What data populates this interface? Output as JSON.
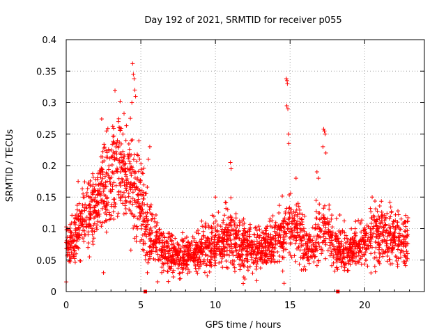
{
  "chart_data": {
    "type": "scatter",
    "title": "Day 192 of 2021, SRMTID for receiver p055",
    "xlabel": "GPS time / hours",
    "ylabel": "SRMTID / TECUs",
    "xlim": [
      0,
      24
    ],
    "ylim": [
      0,
      0.4
    ],
    "xticks": [
      0,
      5,
      10,
      15,
      20
    ],
    "xtick_labels": [
      "0",
      "5",
      "10",
      "15",
      "20"
    ],
    "yticks": [
      0,
      0.05,
      0.1,
      0.15,
      0.2,
      0.25,
      0.3,
      0.35,
      0.4
    ],
    "ytick_labels": [
      "0",
      "0.05",
      "0.1",
      "0.15",
      "0.2",
      "0.25",
      "0.3",
      "0.35",
      "0.4"
    ],
    "grid": true,
    "marker": "plus",
    "color": "#ff0000",
    "profile": [
      [
        0.0,
        0.07,
        0.018
      ],
      [
        0.5,
        0.08,
        0.02
      ],
      [
        1.0,
        0.11,
        0.025
      ],
      [
        1.5,
        0.12,
        0.025
      ],
      [
        2.0,
        0.13,
        0.03
      ],
      [
        2.5,
        0.17,
        0.035
      ],
      [
        3.0,
        0.18,
        0.04
      ],
      [
        3.5,
        0.2,
        0.04
      ],
      [
        4.0,
        0.18,
        0.035
      ],
      [
        4.5,
        0.16,
        0.04
      ],
      [
        5.0,
        0.14,
        0.04
      ],
      [
        5.5,
        0.09,
        0.025
      ],
      [
        6.0,
        0.08,
        0.02
      ],
      [
        7.0,
        0.06,
        0.015
      ],
      [
        8.0,
        0.055,
        0.015
      ],
      [
        9.0,
        0.065,
        0.015
      ],
      [
        10.0,
        0.075,
        0.02
      ],
      [
        11.0,
        0.09,
        0.025
      ],
      [
        12.0,
        0.07,
        0.02
      ],
      [
        13.0,
        0.065,
        0.015
      ],
      [
        14.0,
        0.08,
        0.02
      ],
      [
        14.8,
        0.09,
        0.025
      ],
      [
        15.5,
        0.11,
        0.03
      ],
      [
        16.0,
        0.07,
        0.02
      ],
      [
        16.5,
        0.065,
        0.015
      ],
      [
        17.0,
        0.1,
        0.03
      ],
      [
        17.5,
        0.09,
        0.025
      ],
      [
        18.0,
        0.07,
        0.02
      ],
      [
        19.0,
        0.065,
        0.015
      ],
      [
        20.0,
        0.08,
        0.02
      ],
      [
        21.0,
        0.09,
        0.025
      ],
      [
        22.0,
        0.085,
        0.02
      ],
      [
        22.8,
        0.08,
        0.02
      ]
    ],
    "highlights": [
      {
        "x": 4.45,
        "y": 0.362
      },
      {
        "x": 4.5,
        "y": 0.345
      },
      {
        "x": 4.55,
        "y": 0.338
      },
      {
        "x": 4.6,
        "y": 0.32
      },
      {
        "x": 4.65,
        "y": 0.31
      },
      {
        "x": 4.4,
        "y": 0.3
      },
      {
        "x": 4.3,
        "y": 0.275
      },
      {
        "x": 3.5,
        "y": 0.27
      },
      {
        "x": 2.7,
        "y": 0.255
      },
      {
        "x": 3.6,
        "y": 0.26
      },
      {
        "x": 3.8,
        "y": 0.25
      },
      {
        "x": 4.0,
        "y": 0.24
      },
      {
        "x": 14.75,
        "y": 0.338
      },
      {
        "x": 14.8,
        "y": 0.335
      },
      {
        "x": 14.82,
        "y": 0.33
      },
      {
        "x": 14.78,
        "y": 0.295
      },
      {
        "x": 14.85,
        "y": 0.29
      },
      {
        "x": 14.9,
        "y": 0.25
      },
      {
        "x": 14.92,
        "y": 0.235
      },
      {
        "x": 17.25,
        "y": 0.258
      },
      {
        "x": 17.3,
        "y": 0.255
      },
      {
        "x": 17.35,
        "y": 0.25
      },
      {
        "x": 17.2,
        "y": 0.23
      },
      {
        "x": 17.4,
        "y": 0.22
      },
      {
        "x": 11.0,
        "y": 0.205
      },
      {
        "x": 11.05,
        "y": 0.195
      },
      {
        "x": 5.6,
        "y": 0.23
      },
      {
        "x": 5.5,
        "y": 0.21
      },
      {
        "x": 10.0,
        "y": 0.15
      },
      {
        "x": 20.5,
        "y": 0.15
      },
      {
        "x": 2.5,
        "y": 0.03
      },
      {
        "x": 14.6,
        "y": 0.013
      },
      {
        "x": 7.6,
        "y": 0.02
      },
      {
        "x": 1.8,
        "y": 0.17
      },
      {
        "x": 0.8,
        "y": 0.175
      },
      {
        "x": 16.8,
        "y": 0.19
      },
      {
        "x": 16.9,
        "y": 0.18
      },
      {
        "x": 15.4,
        "y": 0.18
      }
    ],
    "baseline_markers": [
      5.3,
      18.2
    ],
    "point_count": 2600,
    "seed": 192
  }
}
